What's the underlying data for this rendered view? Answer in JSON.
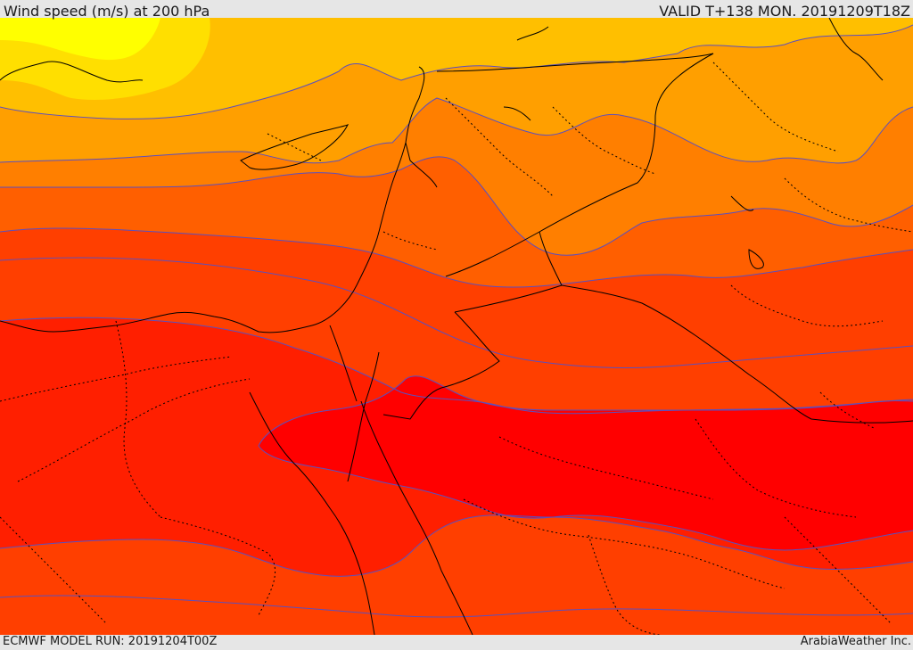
{
  "header": {
    "title": "Wind speed (m/s) at 200 hPa",
    "valid_time": "VALID T+138 MON. 20191209T18Z"
  },
  "footer": {
    "model_run": "ECMWF MODEL RUN: 20191204T00Z",
    "credit": "ArabiaWeather Inc."
  },
  "map": {
    "field": "wind speed",
    "level": "200 hPa",
    "colors": {
      "band_1": "#ffff00",
      "band_2": "#ffdf00",
      "band_3": "#ffbf00",
      "band_4": "#ff9f00",
      "band_5": "#ff7f00",
      "band_6": "#ff5f00",
      "band_7": "#ff3f00",
      "band_8": "#ff1f00",
      "band_9": "#ff0000",
      "contour_line": "#5b4fbf",
      "coastline": "#000000",
      "border": "#000000"
    }
  }
}
